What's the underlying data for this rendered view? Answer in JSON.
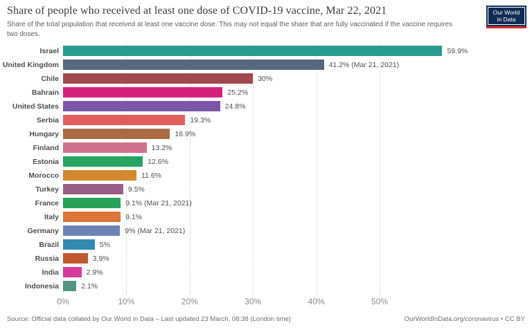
{
  "header": {
    "title": "Share of people who received at least one dose of COVID-19 vaccine, Mar 22, 2021",
    "subtitle": "Share of the total population that received at least one vaccine dose. This may not equal the share that are fully vaccinated if the vaccine requires two doses.",
    "logo": {
      "line1": "Our World",
      "line2": "in Data",
      "bg_color": "#102b54",
      "accent_color": "#cf2d24"
    }
  },
  "chart_data": {
    "type": "bar",
    "orientation": "horizontal",
    "title": "Share of people who received at least one dose of COVID-19 vaccine, Mar 22, 2021",
    "categories": [
      "Israel",
      "United Kingdom",
      "Chile",
      "Bahrain",
      "United States",
      "Serbia",
      "Hungary",
      "Finland",
      "Estonia",
      "Morocco",
      "Turkey",
      "France",
      "Italy",
      "Germany",
      "Brazil",
      "Russia",
      "India",
      "Indonesia"
    ],
    "values": [
      59.9,
      41.2,
      30,
      25.2,
      24.8,
      19.3,
      16.9,
      13.2,
      12.6,
      11.6,
      9.5,
      9.1,
      9.1,
      9,
      5,
      3.9,
      2.9,
      2.1
    ],
    "value_labels": [
      "59.9%",
      "41.2% (Mar 21, 2021)",
      "30%",
      "25.2%",
      "24.8%",
      "19.3%",
      "16.9%",
      "13.2%",
      "12.6%",
      "11.6%",
      "9.5%",
      "9.1% (Mar 21, 2021)",
      "9.1%",
      "9% (Mar 21, 2021)",
      "5%",
      "3.9%",
      "2.9%",
      "2.1%"
    ],
    "colors": [
      "#279e8d",
      "#57687e",
      "#a2494f",
      "#d6217c",
      "#7c57a8",
      "#e25e5d",
      "#aa6b42",
      "#d0718c",
      "#26a361",
      "#d1882e",
      "#985e88",
      "#27a358",
      "#dd7538",
      "#6e83b5",
      "#3389af",
      "#c05a2e",
      "#d63a9d",
      "#579382"
    ],
    "x_ticks": [
      "0%",
      "10%",
      "20%",
      "30%",
      "40%",
      "50%"
    ],
    "x_tick_values": [
      0,
      10,
      20,
      30,
      40,
      50
    ],
    "xlim": [
      0,
      60
    ],
    "grid": "dotted-vertical",
    "legend": "none"
  },
  "footer": {
    "source": "Source: Official data collated by Our World in Data – Last updated 23 March, 08:38 (London time)",
    "link": "OurWorldInData.org/coronavirus • CC BY"
  }
}
